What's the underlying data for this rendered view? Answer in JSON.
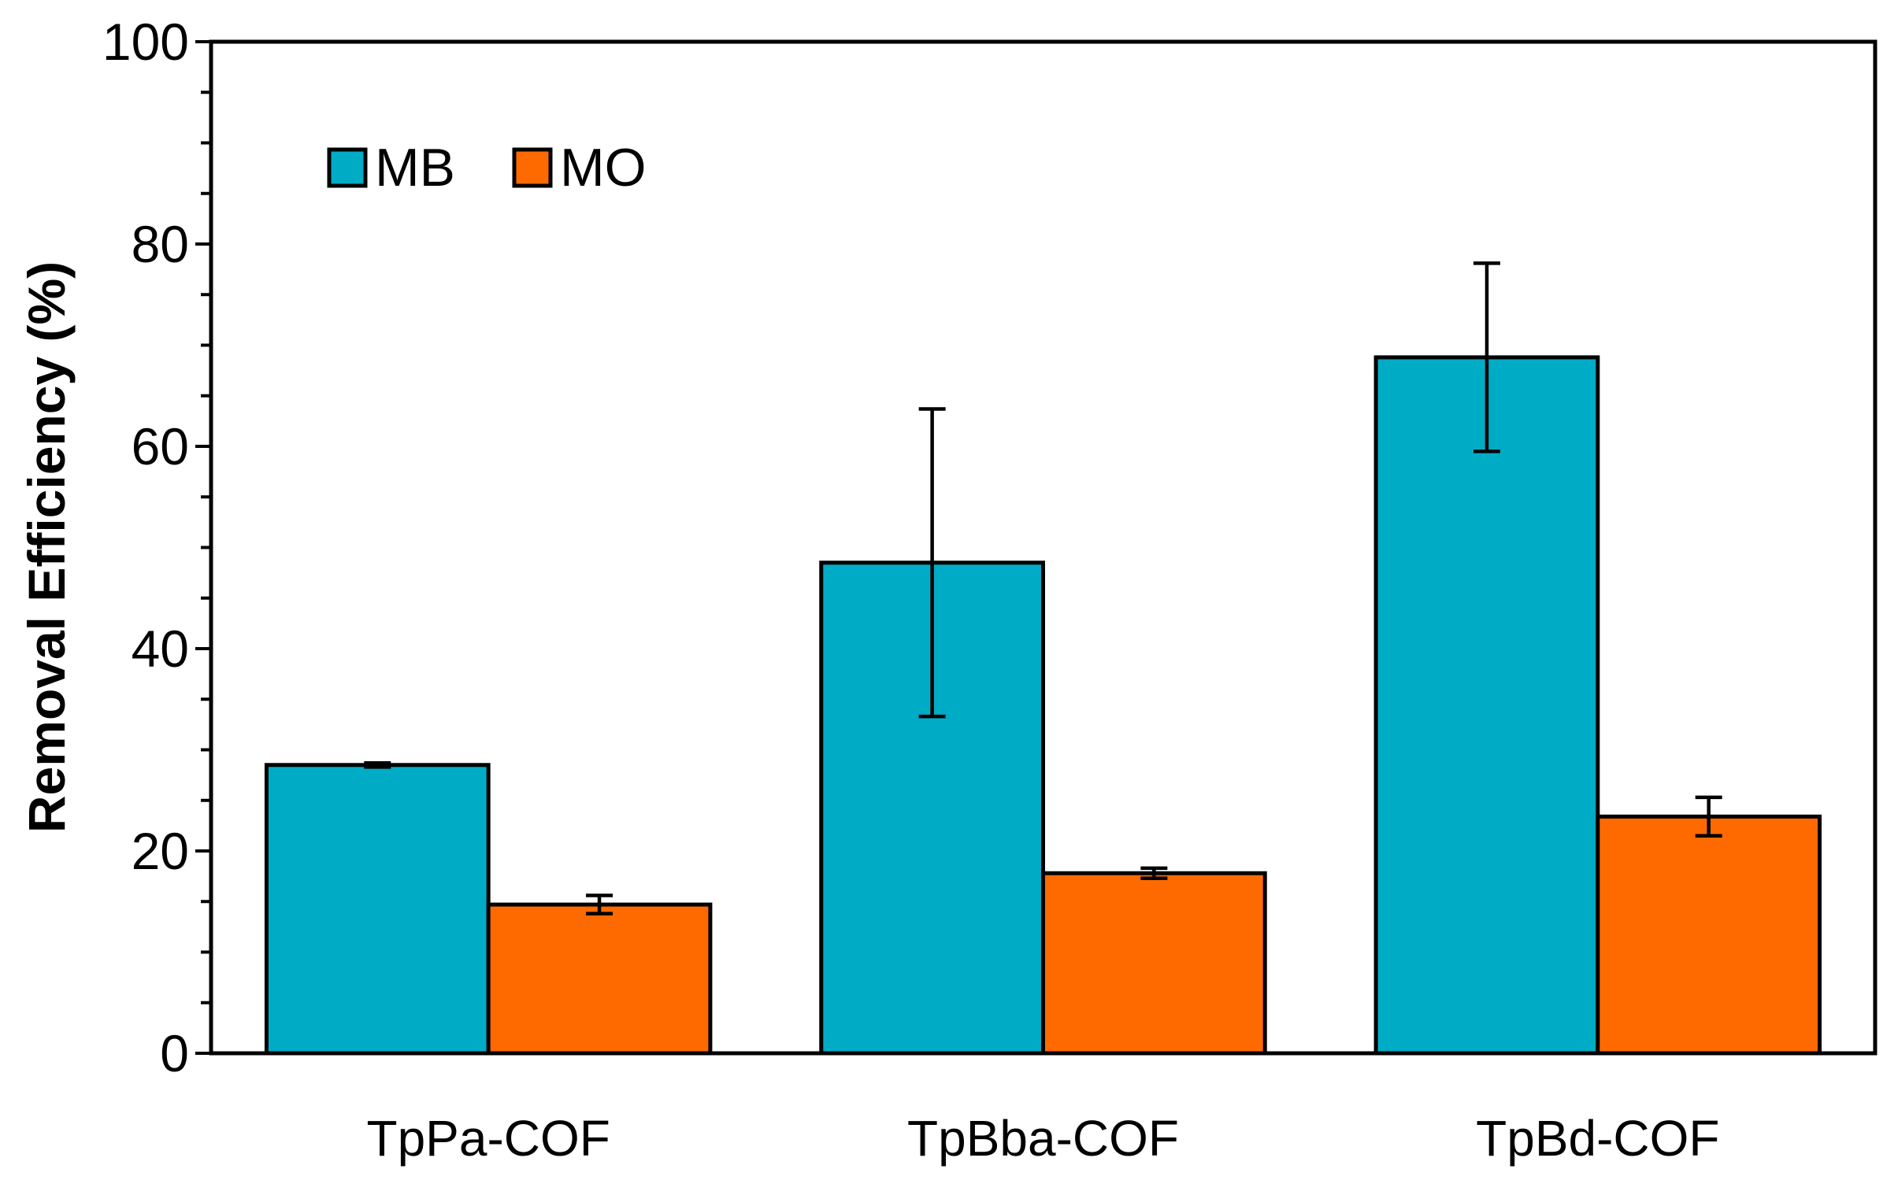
{
  "chart_data": {
    "type": "bar",
    "title": "",
    "xlabel": "",
    "ylabel": "Removal Efficiency (%)",
    "ylim": [
      0,
      100
    ],
    "yticks": [
      "0",
      "20",
      "40",
      "60",
      "80",
      "100"
    ],
    "ytick_values": [
      0,
      20,
      40,
      60,
      80,
      100
    ],
    "minor_tick_step": 5,
    "grid": false,
    "legend_position": "top-left",
    "categories": [
      "TpPa-COF",
      "TpBba-COF",
      "TpBd-COF"
    ],
    "series": [
      {
        "name": "MB",
        "color": "#00ACC5",
        "values": [
          28.5,
          48.5,
          68.8
        ],
        "errors": [
          0.2,
          15.2,
          9.3
        ]
      },
      {
        "name": "MO",
        "color": "#FF6A00",
        "values": [
          14.7,
          17.8,
          23.4
        ],
        "errors": [
          0.9,
          0.5,
          1.9
        ]
      }
    ]
  }
}
